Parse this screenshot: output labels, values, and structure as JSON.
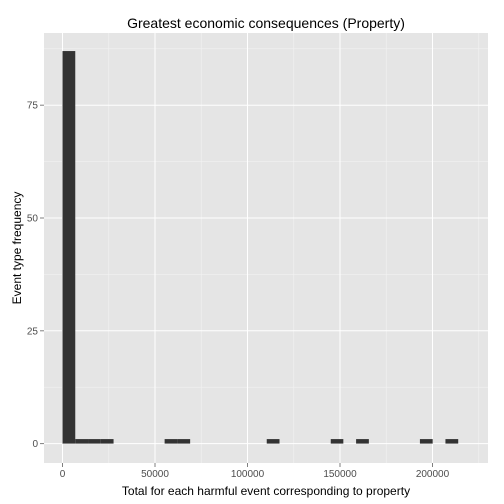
{
  "chart_data": {
    "type": "bar",
    "title": "Greatest economic consequences (Property)",
    "xlabel": "Total for each harmful event corresponding to property",
    "ylabel": "Event type frequency",
    "xlim": [
      -10000,
      230000
    ],
    "ylim": [
      -4.3,
      91
    ],
    "xticks": [
      0,
      50000,
      100000,
      150000,
      200000
    ],
    "xtick_labels": [
      "0",
      "50000",
      "100000",
      "150000",
      "200000"
    ],
    "yticks": [
      0,
      25,
      50,
      75
    ],
    "ytick_labels": [
      "0",
      "25",
      "50",
      "75"
    ],
    "grid": true,
    "bars": [
      {
        "x0": 0,
        "x1": 6900,
        "count": 87
      },
      {
        "x0": 6900,
        "x1": 13800,
        "count": 1
      },
      {
        "x0": 13800,
        "x1": 20700,
        "count": 1
      },
      {
        "x0": 20700,
        "x1": 27600,
        "count": 1
      },
      {
        "x0": 55200,
        "x1": 62100,
        "count": 1
      },
      {
        "x0": 62100,
        "x1": 69000,
        "count": 1
      },
      {
        "x0": 110400,
        "x1": 117300,
        "count": 1
      },
      {
        "x0": 145000,
        "x1": 151800,
        "count": 1
      },
      {
        "x0": 158700,
        "x1": 165600,
        "count": 1
      },
      {
        "x0": 193200,
        "x1": 200100,
        "count": 1
      },
      {
        "x0": 207000,
        "x1": 213900,
        "count": 1
      }
    ],
    "colors": {
      "panel": "#e5e5e5",
      "grid_major": "#ffffff",
      "grid_minor": "#f2f2f2",
      "bar": "#333333"
    }
  }
}
